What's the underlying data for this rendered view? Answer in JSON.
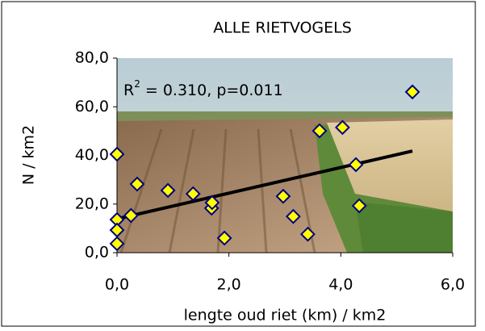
{
  "chart_data": {
    "type": "scatter",
    "title": "ALLE RIETVOGELS",
    "xlabel": "lengte oud riet (km) / km2",
    "ylabel": "N / km2",
    "annotation": {
      "base": "R",
      "sup": "2",
      "rest": " = 0.310, p=0.011"
    },
    "x": [
      0,
      0,
      0,
      0,
      0.25,
      0.36,
      0.91,
      1.36,
      1.69,
      1.7,
      1.92,
      2.97,
      3.15,
      3.41,
      3.62,
      4.03,
      4.27,
      4.33,
      5.28
    ],
    "values": [
      40.5,
      13.6,
      9.3,
      3.7,
      15.3,
      28.2,
      25.6,
      24.2,
      18.3,
      20.6,
      6.0,
      23.2,
      14.9,
      7.6,
      50.1,
      51.5,
      36.2,
      19.3,
      66.1
    ],
    "color": "#ffff00",
    "edgecolor": "#000080",
    "trendline": {
      "x": [
        0,
        5.28
      ],
      "y": [
        13.9,
        41.8
      ],
      "color": "#000000"
    },
    "xlim": [
      0,
      6
    ],
    "ylim": [
      0,
      80
    ],
    "xticks": [
      {
        "value": 0,
        "label": "0,0"
      },
      {
        "value": 2,
        "label": "2,0"
      },
      {
        "value": 4,
        "label": "4,0"
      },
      {
        "value": 6,
        "label": "6,0"
      }
    ],
    "yticks": [
      {
        "value": 0,
        "label": "0,0"
      },
      {
        "value": 20,
        "label": "20,0"
      },
      {
        "value": 40,
        "label": "40,0"
      },
      {
        "value": 60,
        "label": "60,0"
      },
      {
        "value": 80,
        "label": "80,0"
      }
    ]
  }
}
